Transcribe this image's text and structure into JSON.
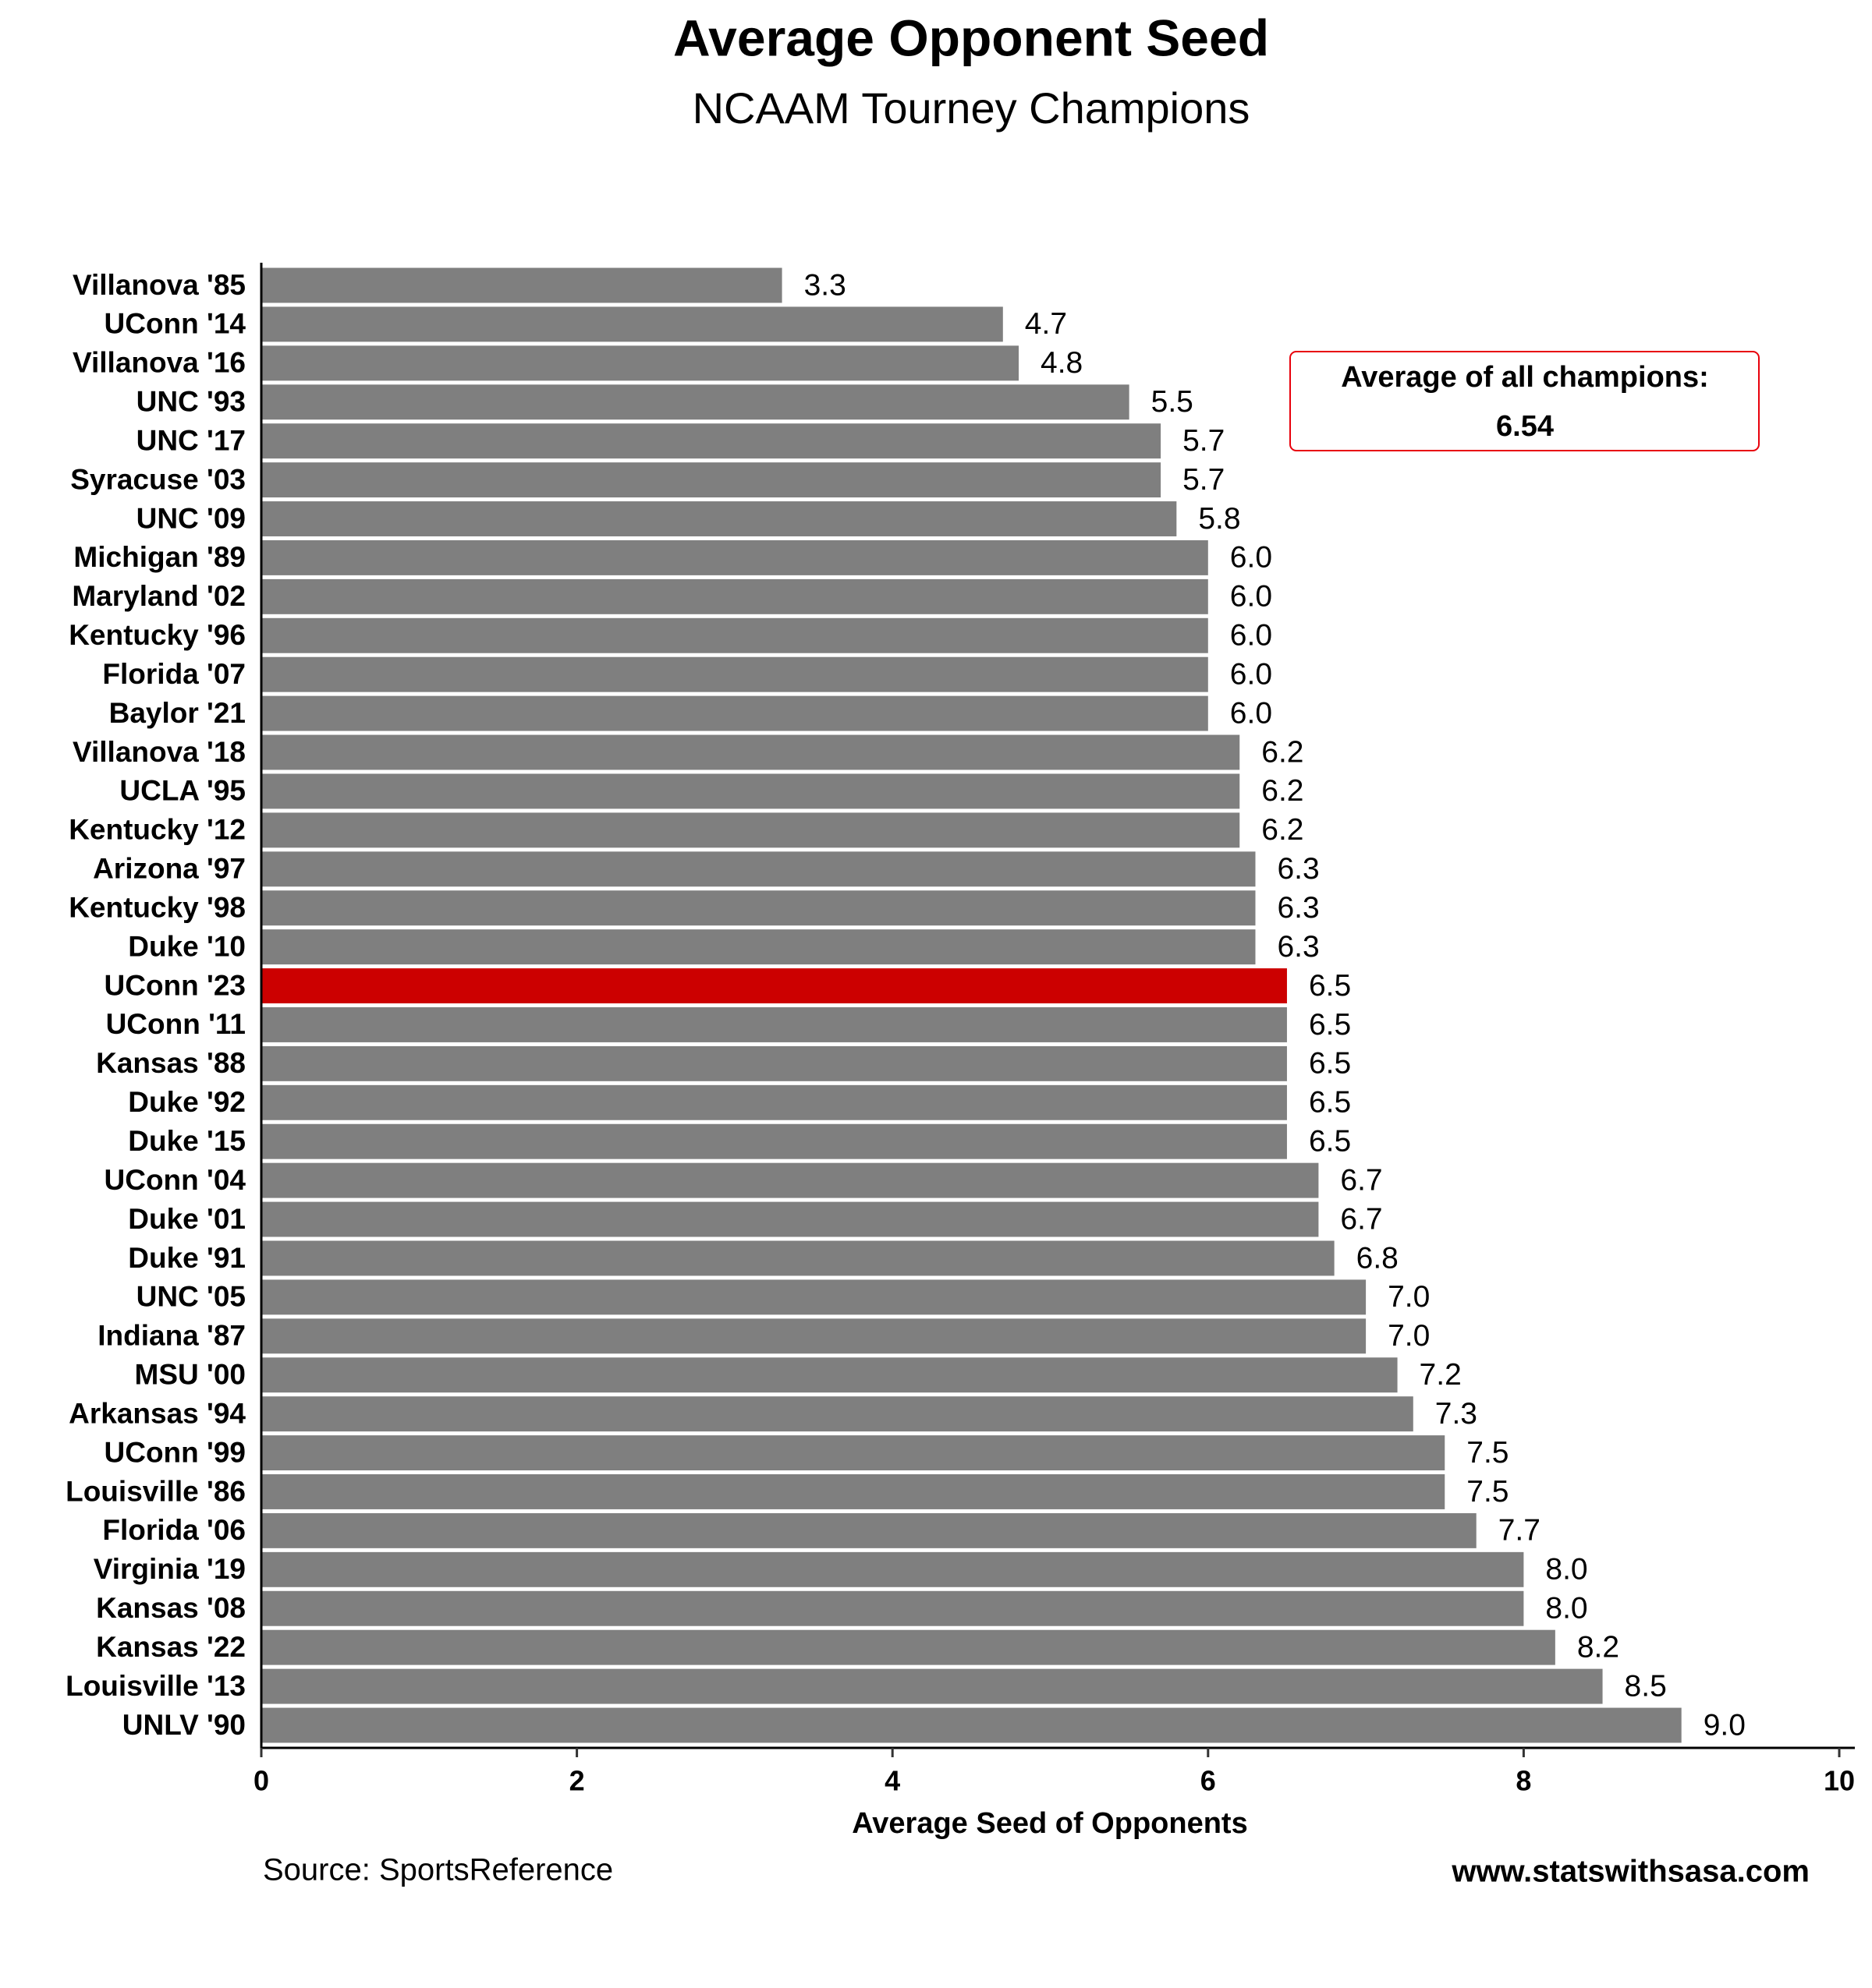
{
  "chart_data": {
    "type": "bar",
    "orientation": "horizontal",
    "title": "Average Opponent Seed",
    "subtitle": "NCAAM Tourney Champions",
    "x_label": "Average Seed of Opponents",
    "source": "Source: SportsReference",
    "credit": "www.statswithsasa.com",
    "annotation": {
      "text": "Average of all champions:",
      "value": 6.54,
      "color": "#e8000b"
    },
    "categories": [
      "Villanova '85",
      "UConn '14",
      "Villanova '16",
      "UNC '93",
      "UNC '17",
      "Syracuse '03",
      "UNC '09",
      "Michigan '89",
      "Maryland '02",
      "Kentucky '96",
      "Florida '07",
      "Baylor '21",
      "Villanova '18",
      "UCLA '95",
      "Kentucky '12",
      "Arizona '97",
      "Kentucky '98",
      "Duke '10",
      "UConn '23",
      "UConn '11",
      "Kansas '88",
      "Duke '92",
      "Duke '15",
      "UConn '04",
      "Duke '01",
      "Duke '91",
      "UNC '05",
      "Indiana '87",
      "MSU '00",
      "Arkansas '94",
      "UConn '99",
      "Louisville '86",
      "Florida '06",
      "Virginia '19",
      "Kansas '08",
      "Kansas '22",
      "Louisville '13",
      "UNLV '90"
    ],
    "values": [
      3.3,
      4.7,
      4.8,
      5.5,
      5.7,
      5.7,
      5.8,
      6,
      6,
      6,
      6,
      6,
      6.2,
      6.2,
      6.2,
      6.3,
      6.3,
      6.3,
      6.5,
      6.5,
      6.5,
      6.5,
      6.5,
      6.7,
      6.7,
      6.8,
      7,
      7,
      7.2,
      7.3,
      7.5,
      7.5,
      7.7,
      8,
      8,
      8.2,
      8.5,
      9
    ],
    "value_labels": [
      "3.3",
      "4.7",
      "4.8",
      "5.5",
      "5.7",
      "5.7",
      "5.8",
      "6.0",
      "6.0",
      "6.0",
      "6.0",
      "6.0",
      "6.2",
      "6.2",
      "6.2",
      "6.3",
      "6.3",
      "6.3",
      "6.5",
      "6.5",
      "6.5",
      "6.5",
      "6.5",
      "6.7",
      "6.7",
      "6.8",
      "7.0",
      "7.0",
      "7.2",
      "7.3",
      "7.5",
      "7.5",
      "7.7",
      "8.0",
      "8.0",
      "8.2",
      "8.5",
      "9.0"
    ],
    "colors": [
      "#7f7f7f",
      "#7f7f7f",
      "#7f7f7f",
      "#7f7f7f",
      "#7f7f7f",
      "#7f7f7f",
      "#7f7f7f",
      "#7f7f7f",
      "#7f7f7f",
      "#7f7f7f",
      "#7f7f7f",
      "#7f7f7f",
      "#7f7f7f",
      "#7f7f7f",
      "#7f7f7f",
      "#7f7f7f",
      "#7f7f7f",
      "#7f7f7f",
      "#cc0000",
      "#7f7f7f",
      "#7f7f7f",
      "#7f7f7f",
      "#7f7f7f",
      "#7f7f7f",
      "#7f7f7f",
      "#7f7f7f",
      "#7f7f7f",
      "#7f7f7f",
      "#7f7f7f",
      "#7f7f7f",
      "#7f7f7f",
      "#7f7f7f",
      "#7f7f7f",
      "#7f7f7f",
      "#7f7f7f",
      "#7f7f7f",
      "#7f7f7f",
      "#7f7f7f"
    ],
    "xlim": [
      0,
      10
    ],
    "xticks": [
      0,
      2,
      4,
      6,
      8,
      10
    ],
    "grid": false
  }
}
